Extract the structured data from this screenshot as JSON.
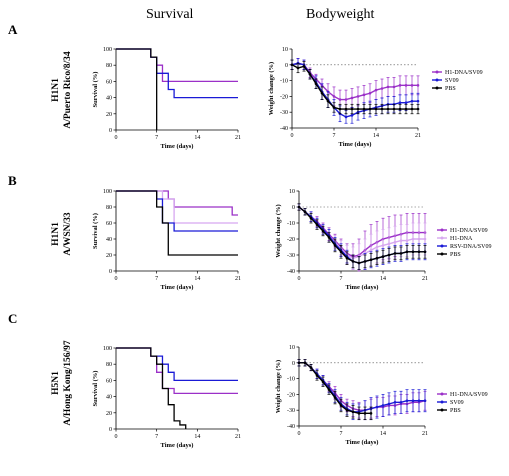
{
  "column_titles": {
    "survival": "Survival",
    "bodyweight": "Bodyweight"
  },
  "panels": [
    {
      "letter": "A",
      "subtype": "H1N1",
      "strain": "A/Puerto Rico/8/34"
    },
    {
      "letter": "B",
      "subtype": "H1N1",
      "strain": "A/WSN/33"
    },
    {
      "letter": "C",
      "subtype": "H5N1",
      "strain": "A/Hong Kong/156/97"
    }
  ],
  "colors": {
    "purple": "#9b30c8",
    "light_purple": "#d7a8f0",
    "blue": "#1a1ad6",
    "black": "#000000",
    "gray": "#999999"
  },
  "chart_data": [
    {
      "id": "A-survival",
      "type": "line",
      "step": true,
      "xlabel": "Time (days)",
      "ylabel": "Survival (%)",
      "xlim": [
        0,
        21
      ],
      "ylim": [
        0,
        100
      ],
      "xticks": [
        0,
        7,
        14,
        21
      ],
      "yticks": [
        0,
        20,
        40,
        60,
        80,
        100
      ],
      "series": [
        {
          "color": "purple",
          "x": [
            0,
            6,
            7,
            8,
            21
          ],
          "y": [
            100,
            90,
            80,
            60,
            60
          ]
        },
        {
          "color": "blue",
          "x": [
            0,
            6,
            7,
            9,
            10,
            21
          ],
          "y": [
            100,
            90,
            70,
            50,
            40,
            40
          ]
        },
        {
          "color": "black",
          "x": [
            0,
            6,
            7,
            7
          ],
          "y": [
            100,
            90,
            90,
            0
          ]
        }
      ]
    },
    {
      "id": "A-weight",
      "type": "line",
      "xlabel": "Time (days)",
      "ylabel": "Weight change (%)",
      "xlim": [
        0,
        21
      ],
      "ylim": [
        -40,
        10
      ],
      "xticks": [
        0,
        7,
        14,
        21
      ],
      "yticks": [
        10,
        0,
        -10,
        -20,
        -30,
        -40
      ],
      "zero_line": true,
      "series": [
        {
          "name": "H1-DNA/SV09",
          "color": "purple",
          "x": [
            0,
            1,
            2,
            3,
            4,
            5,
            6,
            7,
            8,
            9,
            10,
            11,
            12,
            13,
            14,
            15,
            16,
            17,
            18,
            19,
            20,
            21
          ],
          "y": [
            0,
            1,
            0,
            -5,
            -9,
            -13,
            -17,
            -20,
            -22,
            -22,
            -21,
            -20,
            -19,
            -18,
            -16,
            -15,
            -14,
            -14,
            -13,
            -13,
            -13,
            -13
          ],
          "err": [
            3,
            3,
            3,
            3,
            3,
            4,
            5,
            6,
            6,
            6,
            6,
            6,
            6,
            6,
            6,
            6,
            6,
            6,
            6,
            6,
            6,
            6
          ]
        },
        {
          "name": "SV09",
          "color": "blue",
          "x": [
            0,
            1,
            2,
            3,
            4,
            5,
            6,
            7,
            8,
            9,
            10,
            11,
            12,
            13,
            14,
            15,
            16,
            17,
            18,
            19,
            20,
            21
          ],
          "y": [
            0,
            1,
            0,
            -6,
            -11,
            -17,
            -22,
            -27,
            -31,
            -33,
            -32,
            -30,
            -29,
            -28,
            -27,
            -26,
            -25,
            -25,
            -24,
            -24,
            -23,
            -23
          ],
          "err": [
            3,
            3,
            3,
            3,
            4,
            5,
            5,
            5,
            5,
            4,
            5,
            5,
            5,
            5,
            5,
            5,
            5,
            5,
            5,
            5,
            5,
            5
          ]
        },
        {
          "name": "PBS",
          "color": "black",
          "x": [
            0,
            1,
            2,
            3,
            4,
            5,
            6,
            7,
            8,
            9,
            10,
            11,
            12,
            13,
            14,
            15,
            16,
            17,
            18,
            19,
            20,
            21
          ],
          "y": [
            0,
            -2,
            -1,
            -6,
            -12,
            -18,
            -23,
            -27,
            -28,
            -28,
            -28,
            -28,
            -28,
            -28,
            -28,
            -28,
            -28,
            -28,
            -28,
            -28,
            -28,
            -28
          ],
          "err": [
            3,
            3,
            3,
            3,
            3,
            4,
            4,
            3,
            3,
            3,
            3,
            3,
            3,
            3,
            3,
            3,
            3,
            3,
            3,
            3,
            3,
            3
          ]
        }
      ]
    },
    {
      "id": "B-survival",
      "type": "line",
      "step": true,
      "xlabel": "Time (days)",
      "ylabel": "Survival (%)",
      "xlim": [
        0,
        21
      ],
      "ylim": [
        0,
        100
      ],
      "xticks": [
        0,
        7,
        14,
        21
      ],
      "yticks": [
        0,
        20,
        40,
        60,
        80,
        100
      ],
      "series": [
        {
          "color": "purple",
          "x": [
            0,
            9,
            10,
            20,
            21
          ],
          "y": [
            100,
            90,
            80,
            70,
            70
          ]
        },
        {
          "color": "light_purple",
          "x": [
            0,
            8,
            10,
            21
          ],
          "y": [
            100,
            90,
            60,
            60
          ]
        },
        {
          "color": "blue",
          "x": [
            0,
            7,
            8,
            10,
            21
          ],
          "y": [
            100,
            90,
            60,
            50,
            50
          ]
        },
        {
          "color": "black",
          "x": [
            0,
            7,
            8,
            9,
            21
          ],
          "y": [
            100,
            80,
            60,
            20,
            20
          ]
        }
      ]
    },
    {
      "id": "B-weight",
      "type": "line",
      "xlabel": "Time (days)",
      "ylabel": "Weight change (%)",
      "xlim": [
        0,
        21
      ],
      "ylim": [
        -40,
        10
      ],
      "xticks": [
        0,
        7,
        14,
        21
      ],
      "yticks": [
        10,
        0,
        -10,
        -20,
        -30,
        -40
      ],
      "zero_line": true,
      "series": [
        {
          "name": "H1-DNA/SV09",
          "color": "purple",
          "x": [
            0,
            1,
            2,
            3,
            4,
            5,
            6,
            7,
            8,
            9,
            10,
            11,
            12,
            13,
            14,
            15,
            16,
            17,
            18,
            19,
            20,
            21
          ],
          "y": [
            0,
            -3,
            -6,
            -9,
            -13,
            -17,
            -21,
            -25,
            -29,
            -31,
            -30,
            -27,
            -24,
            -22,
            -20,
            -19,
            -18,
            -17,
            -16,
            -16,
            -16,
            -16
          ],
          "err": [
            2,
            2,
            3,
            3,
            3,
            4,
            4,
            5,
            6,
            8,
            10,
            12,
            13,
            13,
            13,
            13,
            13,
            12,
            12,
            12,
            12,
            12
          ]
        },
        {
          "name": "H1-DNA",
          "color": "light_purple",
          "x": [
            0,
            1,
            2,
            3,
            4,
            5,
            6,
            7,
            8,
            9,
            10,
            11,
            12,
            13,
            14,
            15,
            16,
            17,
            18,
            19,
            20,
            21
          ],
          "y": [
            0,
            -3,
            -6,
            -10,
            -14,
            -18,
            -22,
            -26,
            -30,
            -32,
            -31,
            -29,
            -27,
            -25,
            -24,
            -23,
            -22,
            -21,
            -21,
            -20,
            -20,
            -20
          ],
          "err": [
            2,
            2,
            3,
            3,
            3,
            4,
            4,
            5,
            6,
            7,
            8,
            9,
            10,
            10,
            10,
            10,
            10,
            10,
            10,
            10,
            10,
            10
          ]
        },
        {
          "name": "RSV-DNA/SV09",
          "color": "blue",
          "x": [
            0,
            1,
            2,
            3,
            4,
            5,
            6,
            7,
            8,
            9,
            10,
            11,
            12,
            13,
            14,
            15,
            16,
            17,
            18,
            19,
            20,
            21
          ],
          "y": [
            0,
            -3,
            -6,
            -10,
            -14,
            -18,
            -23,
            -27,
            -31,
            -34,
            -35,
            -34,
            -33,
            -32,
            -31,
            -30,
            -29,
            -29,
            -28,
            -28,
            -28,
            -28
          ],
          "err": [
            2,
            2,
            3,
            3,
            3,
            4,
            4,
            4,
            4,
            4,
            4,
            5,
            5,
            5,
            5,
            5,
            5,
            5,
            5,
            5,
            5,
            5
          ]
        },
        {
          "name": "PBS",
          "color": "black",
          "x": [
            0,
            1,
            2,
            3,
            4,
            5,
            6,
            7,
            8,
            9,
            10,
            11,
            12,
            13,
            14,
            15,
            16,
            17,
            18,
            19,
            20,
            21
          ],
          "y": [
            0,
            -3,
            -7,
            -11,
            -15,
            -19,
            -24,
            -28,
            -32,
            -34,
            -35,
            -34,
            -33,
            -32,
            -31,
            -30,
            -29,
            -29,
            -28,
            -28,
            -28,
            -28
          ],
          "err": [
            2,
            2,
            3,
            3,
            3,
            3,
            4,
            4,
            4,
            4,
            4,
            4,
            4,
            4,
            4,
            4,
            4,
            4,
            4,
            4,
            4,
            4
          ]
        }
      ]
    },
    {
      "id": "C-survival",
      "type": "line",
      "step": true,
      "xlabel": "Time (days)",
      "ylabel": "Survival (%)",
      "xlim": [
        0,
        21
      ],
      "ylim": [
        0,
        100
      ],
      "xticks": [
        0,
        7,
        14,
        21
      ],
      "yticks": [
        0,
        20,
        40,
        60,
        80,
        100
      ],
      "series": [
        {
          "color": "blue",
          "x": [
            0,
            6,
            8,
            9,
            10,
            21
          ],
          "y": [
            100,
            90,
            80,
            70,
            60,
            60
          ]
        },
        {
          "color": "purple",
          "x": [
            0,
            6,
            7,
            8,
            10,
            21
          ],
          "y": [
            100,
            90,
            70,
            50,
            44,
            44
          ]
        },
        {
          "color": "black",
          "x": [
            0,
            6,
            7,
            8,
            9,
            10,
            11,
            12
          ],
          "y": [
            100,
            90,
            80,
            50,
            30,
            10,
            5,
            0
          ]
        }
      ]
    },
    {
      "id": "C-weight",
      "type": "line",
      "xlabel": "Time (days)",
      "ylabel": "Weight change (%)",
      "xlim": [
        0,
        21
      ],
      "ylim": [
        -40,
        10
      ],
      "xticks": [
        0,
        7,
        14,
        21
      ],
      "yticks": [
        10,
        0,
        -10,
        -20,
        -30,
        -40
      ],
      "zero_line": true,
      "series": [
        {
          "name": "H1-DNA/SV09",
          "color": "purple",
          "x": [
            0,
            1,
            2,
            3,
            4,
            5,
            6,
            7,
            8,
            9,
            10,
            11,
            12,
            13,
            14,
            15,
            16,
            17,
            18,
            19,
            20,
            21
          ],
          "y": [
            0,
            0,
            -3,
            -7,
            -11,
            -15,
            -19,
            -24,
            -27,
            -29,
            -30,
            -30,
            -29,
            -28,
            -28,
            -27,
            -27,
            -26,
            -26,
            -25,
            -25,
            -24
          ],
          "err": [
            2,
            2,
            2,
            3,
            3,
            3,
            4,
            4,
            4,
            5,
            5,
            6,
            6,
            6,
            6,
            6,
            6,
            6,
            6,
            6,
            6,
            6
          ]
        },
        {
          "name": "SV09",
          "color": "blue",
          "x": [
            0,
            1,
            2,
            3,
            4,
            5,
            6,
            7,
            8,
            9,
            10,
            11,
            12,
            13,
            14,
            15,
            16,
            17,
            18,
            19,
            20,
            21
          ],
          "y": [
            0,
            0,
            -3,
            -7,
            -11,
            -16,
            -21,
            -26,
            -29,
            -31,
            -31,
            -30,
            -29,
            -28,
            -27,
            -26,
            -25,
            -25,
            -24,
            -24,
            -24,
            -24
          ],
          "err": [
            2,
            2,
            2,
            3,
            3,
            3,
            4,
            4,
            4,
            5,
            5,
            6,
            7,
            7,
            7,
            7,
            7,
            7,
            7,
            7,
            7,
            7
          ]
        },
        {
          "name": "PBS",
          "color": "black",
          "x": [
            0,
            1,
            2,
            3,
            4,
            5,
            6,
            7,
            8,
            9,
            10,
            11,
            12
          ],
          "y": [
            0,
            0,
            -3,
            -8,
            -12,
            -17,
            -22,
            -27,
            -30,
            -31,
            -32,
            -32,
            -32
          ],
          "err": [
            2,
            2,
            2,
            3,
            3,
            3,
            4,
            4,
            4,
            4,
            4,
            4,
            4
          ]
        }
      ]
    }
  ]
}
